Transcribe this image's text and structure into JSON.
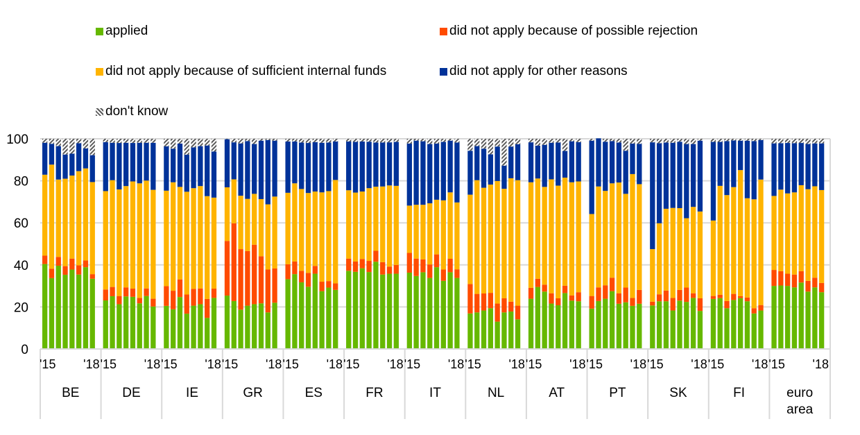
{
  "chart_data": {
    "type": "bar",
    "stacked": true,
    "title": "",
    "xlabel": "",
    "ylabel": "",
    "ylim": [
      0,
      100
    ],
    "yticks": [
      0,
      20,
      40,
      60,
      80,
      100
    ],
    "grid": true,
    "legend_position": "top",
    "year_tick_labels": [
      "'15",
      "'18"
    ],
    "series": [
      {
        "key": "applied",
        "name": "applied",
        "color": "#66b800",
        "pattern": "solid"
      },
      {
        "key": "rejection",
        "name": "did not apply because of possible rejection",
        "color": "#ff4b00",
        "pattern": "solid"
      },
      {
        "key": "internal",
        "name": "did not apply because of sufficient internal funds",
        "color": "#ffb400",
        "pattern": "solid"
      },
      {
        "key": "other",
        "name": "did not apply for other reasons",
        "color": "#003299",
        "pattern": "solid"
      },
      {
        "key": "dontknow",
        "name": "don't know",
        "color": "#5a5a5a",
        "pattern": "hatch"
      }
    ],
    "groups": [
      {
        "label": [
          "BE"
        ],
        "applied": [
          40.4,
          33.7,
          39.6,
          35.3,
          37.8,
          35.4,
          38.9,
          33.4
        ],
        "rejection": [
          4.0,
          4.5,
          4.2,
          4.1,
          5.2,
          4.4,
          3.2,
          2.2
        ],
        "internal": [
          38.5,
          49.5,
          36.8,
          41.6,
          39.5,
          44.8,
          43.8,
          43.8
        ],
        "other": [
          15.2,
          9.9,
          15.9,
          11.5,
          10.4,
          13.3,
          9.5,
          12.8
        ],
        "dontknow": [
          1.9,
          2.4,
          3.5,
          7.5,
          7.1,
          2.1,
          4.6,
          7.8
        ]
      },
      {
        "label": [
          "DE"
        ],
        "applied": [
          23.1,
          25.1,
          21.3,
          25.0,
          24.8,
          21.7,
          25.2,
          20.2
        ],
        "rejection": [
          5.2,
          4.4,
          3.9,
          4.3,
          3.9,
          2.6,
          3.6,
          3.7
        ],
        "internal": [
          46.8,
          50.8,
          50.7,
          48.2,
          51.0,
          54.5,
          51.3,
          51.8
        ],
        "other": [
          23.3,
          17.8,
          22.1,
          20.6,
          18.3,
          19.3,
          18.0,
          22.4
        ],
        "dontknow": [
          1.6,
          1.9,
          2.0,
          1.9,
          2.0,
          1.9,
          1.9,
          1.9
        ]
      },
      {
        "label": [
          "IE"
        ],
        "applied": [
          20.5,
          18.9,
          24.7,
          16.8,
          20.6,
          21.3,
          14.8,
          24.3
        ],
        "rejection": [
          9.4,
          8.8,
          8.4,
          9.1,
          8.0,
          7.5,
          9.0,
          4.4
        ],
        "internal": [
          45.4,
          51.6,
          44.0,
          48.9,
          47.9,
          48.7,
          48.9,
          43.3
        ],
        "other": [
          21.1,
          16.0,
          20.6,
          17.6,
          19.4,
          19.0,
          24.1,
          21.9
        ],
        "dontknow": [
          3.6,
          4.7,
          2.3,
          7.6,
          4.1,
          3.5,
          3.2,
          6.1
        ]
      },
      {
        "label": [
          "GR"
        ],
        "applied": [
          25.4,
          22.8,
          18.7,
          20.6,
          21.3,
          21.7,
          17.4,
          22.0
        ],
        "rejection": [
          26.0,
          37.0,
          28.8,
          26.0,
          28.3,
          22.4,
          20.4,
          16.3
        ],
        "internal": [
          25.5,
          20.9,
          25.4,
          24.8,
          24.2,
          27.2,
          31.0,
          34.2
        ],
        "other": [
          22.9,
          17.6,
          24.9,
          27.5,
          23.7,
          27.8,
          30.6,
          26.6
        ],
        "dontknow": [
          0.2,
          1.7,
          2.2,
          1.1,
          2.5,
          0.9,
          0.6,
          0.9
        ]
      },
      {
        "label": [
          "ES"
        ],
        "applied": [
          33.2,
          35.6,
          31.7,
          29.6,
          35.8,
          27.5,
          29.2,
          28.1
        ],
        "rejection": [
          7.1,
          6.0,
          5.5,
          6.6,
          3.7,
          4.5,
          3.1,
          3.1
        ],
        "internal": [
          34.0,
          37.2,
          38.9,
          38.0,
          35.4,
          42.5,
          42.8,
          49.2
        ],
        "other": [
          24.4,
          19.9,
          22.1,
          23.8,
          23.5,
          23.6,
          23.1,
          18.3
        ],
        "dontknow": [
          1.3,
          1.3,
          1.8,
          2.0,
          1.6,
          1.9,
          1.8,
          1.3
        ]
      },
      {
        "label": [
          "FR"
        ],
        "applied": [
          37.2,
          36.7,
          38.4,
          36.6,
          41.5,
          35.4,
          35.8,
          35.8
        ],
        "rejection": [
          5.8,
          4.9,
          4.4,
          5.3,
          5.2,
          5.9,
          3.4,
          4.2
        ],
        "internal": [
          32.5,
          32.8,
          32.1,
          34.6,
          30.5,
          36.0,
          38.6,
          37.6
        ],
        "other": [
          23.2,
          24.1,
          23.8,
          22.1,
          21.0,
          20.9,
          20.5,
          20.9
        ],
        "dontknow": [
          1.3,
          1.5,
          1.3,
          1.4,
          1.8,
          1.8,
          1.7,
          1.5
        ]
      },
      {
        "label": [
          "IT"
        ],
        "applied": [
          36.3,
          34.7,
          36.5,
          33.8,
          38.9,
          32.4,
          36.5,
          33.8
        ],
        "rejection": [
          9.4,
          8.3,
          6.1,
          6.4,
          6.1,
          5.4,
          6.4,
          4.1
        ],
        "internal": [
          22.5,
          25.6,
          26.0,
          29.1,
          26.0,
          32.9,
          31.6,
          31.8
        ],
        "other": [
          29.5,
          30.5,
          30.2,
          28.2,
          26.7,
          27.8,
          24.6,
          28.5
        ],
        "dontknow": [
          2.3,
          0.9,
          1.2,
          2.5,
          2.3,
          1.5,
          0.9,
          1.8
        ]
      },
      {
        "label": [
          "NL"
        ],
        "applied": [
          16.9,
          17.4,
          18.3,
          19.4,
          13.0,
          17.4,
          17.8,
          14.1
        ],
        "rejection": [
          14.0,
          8.8,
          8.1,
          7.3,
          8.6,
          6.7,
          4.7,
          6.5
        ],
        "internal": [
          42.5,
          54.1,
          50.3,
          51.5,
          58.3,
          52.1,
          58.7,
          59.7
        ],
        "other": [
          20.9,
          16.2,
          18.6,
          14.4,
          16.4,
          11.0,
          15.1,
          17.1
        ],
        "dontknow": [
          5.7,
          3.5,
          4.7,
          7.4,
          3.7,
          12.8,
          3.7,
          2.6
        ]
      },
      {
        "label": [
          "AT"
        ],
        "applied": [
          23.9,
          29.5,
          27.3,
          21.6,
          20.8,
          26.6,
          23.0,
          22.7
        ],
        "rejection": [
          5.2,
          3.9,
          3.3,
          4.9,
          3.3,
          3.5,
          2.5,
          4.3
        ],
        "internal": [
          50.2,
          47.7,
          46.5,
          54.2,
          53.6,
          51.4,
          53.8,
          52.7
        ],
        "other": [
          19.0,
          15.6,
          20.0,
          17.4,
          20.5,
          12.7,
          19.5,
          18.7
        ],
        "dontknow": [
          1.7,
          3.3,
          2.9,
          1.9,
          1.8,
          5.8,
          1.2,
          1.6
        ]
      },
      {
        "label": [
          "PT"
        ],
        "applied": [
          19.2,
          22.8,
          23.9,
          27.5,
          21.5,
          22.2,
          20.5,
          21.5
        ],
        "rejection": [
          6.0,
          6.5,
          6.4,
          6.4,
          5.0,
          7.0,
          3.8,
          6.6
        ],
        "internal": [
          39.0,
          48.0,
          44.9,
          44.9,
          52.7,
          44.6,
          58.9,
          50.3
        ],
        "other": [
          34.9,
          22.9,
          23.4,
          20.1,
          19.0,
          20.5,
          14.5,
          19.2
        ],
        "dontknow": [
          0.9,
          0.0,
          1.4,
          1.1,
          1.8,
          5.7,
          2.3,
          2.4
        ]
      },
      {
        "label": [
          "SK"
        ],
        "applied": [
          20.7,
          22.7,
          22.7,
          18.3,
          23.0,
          22.4,
          24.3,
          18.1
        ],
        "rejection": [
          1.8,
          3.3,
          5.1,
          6.0,
          5.1,
          6.8,
          2.2,
          6.0
        ],
        "internal": [
          25.0,
          33.8,
          38.9,
          42.8,
          38.9,
          33.0,
          41.1,
          41.3
        ],
        "other": [
          50.8,
          38.1,
          31.5,
          31.0,
          31.6,
          35.3,
          29.9,
          33.7
        ],
        "dontknow": [
          1.7,
          2.1,
          1.8,
          1.9,
          1.4,
          2.5,
          2.5,
          0.9
        ]
      },
      {
        "label": [
          "FI"
        ],
        "applied": [
          23.8,
          24.2,
          19.4,
          23.3,
          24.2,
          22.7,
          16.9,
          18.3
        ],
        "rejection": [
          1.4,
          1.6,
          3.4,
          2.9,
          0.9,
          1.8,
          2.5,
          2.6
        ],
        "internal": [
          35.9,
          51.8,
          50.4,
          50.8,
          60.0,
          47.2,
          51.8,
          59.7
        ],
        "other": [
          37.4,
          20.9,
          25.7,
          22.2,
          14.0,
          27.4,
          27.7,
          18.8
        ],
        "dontknow": [
          1.5,
          1.5,
          1.1,
          0.8,
          0.9,
          0.9,
          1.1,
          0.6
        ]
      },
      {
        "label": [
          "euro",
          "area"
        ],
        "applied": [
          30.0,
          30.2,
          30.0,
          29.3,
          31.6,
          27.3,
          29.3,
          27.0
        ],
        "rejection": [
          7.6,
          6.8,
          5.8,
          6.1,
          5.4,
          5.1,
          4.6,
          4.4
        ],
        "internal": [
          35.2,
          38.8,
          38.2,
          39.1,
          40.9,
          43.6,
          43.5,
          44.2
        ],
        "other": [
          25.0,
          22.1,
          24.0,
          23.4,
          20.1,
          21.5,
          20.4,
          22.2
        ],
        "dontknow": [
          2.2,
          2.1,
          2.0,
          2.1,
          2.0,
          2.5,
          2.2,
          2.2
        ]
      }
    ]
  }
}
